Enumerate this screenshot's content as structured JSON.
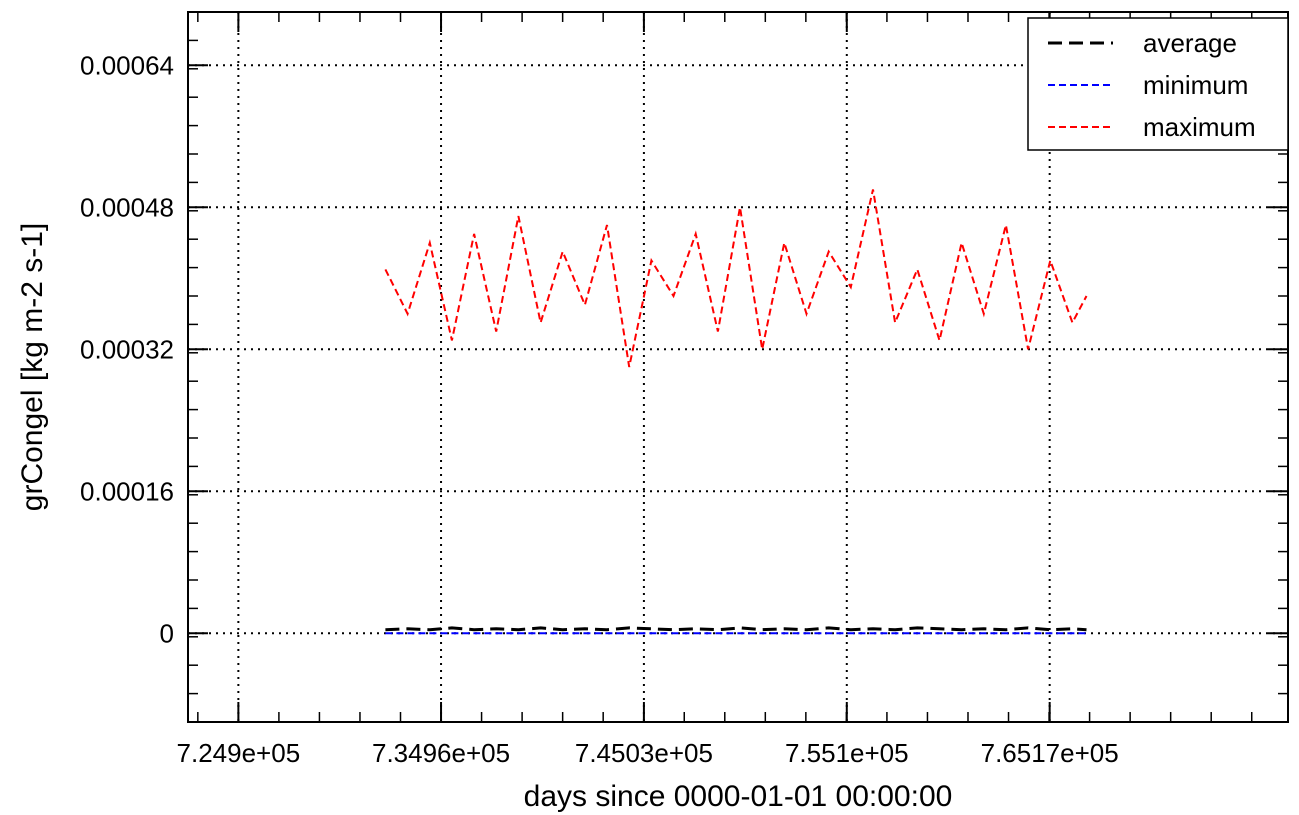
{
  "chart_data": {
    "type": "line",
    "xlabel": "days since 0000-01-01 00:00:00",
    "ylabel": "grCongel [kg m-2 s-1]",
    "xlim": [
      722400,
      777000
    ],
    "ylim": [
      -0.0001,
      0.0007
    ],
    "x_ticks": [
      724900,
      734960,
      745030,
      755100,
      765170
    ],
    "x_tick_labels": [
      "7.249e+05",
      "7.3496e+05",
      "7.4503e+05",
      "7.551e+05",
      "7.6517e+05"
    ],
    "y_ticks": [
      0,
      0.00016,
      0.00032,
      0.00048,
      0.00064
    ],
    "y_tick_labels": [
      "0",
      "0.00016",
      "0.00032",
      "0.00048",
      "0.00064"
    ],
    "grid": true,
    "legend_position": "top-right",
    "x": [
      732200,
      733300,
      734400,
      735500,
      736600,
      737700,
      738800,
      739900,
      741000,
      742100,
      743200,
      744300,
      745400,
      746500,
      747600,
      748700,
      749800,
      750900,
      752000,
      753100,
      754200,
      755300,
      756400,
      757500,
      758600,
      759700,
      760800,
      761900,
      763000,
      764100,
      765200,
      766300,
      767000
    ],
    "series": [
      {
        "name": "average",
        "color": "#000000",
        "style": "long-dash",
        "values": [
          4e-06,
          5e-06,
          4e-06,
          6e-06,
          4e-06,
          5e-06,
          4e-06,
          6e-06,
          4e-06,
          5e-06,
          4e-06,
          6e-06,
          5e-06,
          4e-06,
          5e-06,
          4e-06,
          6e-06,
          4e-06,
          5e-06,
          4e-06,
          6e-06,
          4e-06,
          5e-06,
          4e-06,
          6e-06,
          5e-06,
          4e-06,
          5e-06,
          4e-06,
          6e-06,
          4e-06,
          5e-06,
          4e-06
        ]
      },
      {
        "name": "minimum",
        "color": "#0000ff",
        "style": "short-dash",
        "values": [
          0,
          0,
          0,
          0,
          0,
          0,
          0,
          0,
          0,
          0,
          0,
          0,
          0,
          0,
          0,
          0,
          0,
          0,
          0,
          0,
          0,
          0,
          0,
          0,
          0,
          0,
          0,
          0,
          0,
          0,
          0,
          0,
          0
        ]
      },
      {
        "name": "maximum",
        "color": "#ff0000",
        "style": "short-dash",
        "values": [
          0.00041,
          0.00036,
          0.00044,
          0.00033,
          0.00045,
          0.00034,
          0.00047,
          0.00035,
          0.00043,
          0.00037,
          0.00046,
          0.0003,
          0.00042,
          0.00038,
          0.00045,
          0.00034,
          0.00048,
          0.00032,
          0.00044,
          0.00036,
          0.00043,
          0.00039,
          0.0005,
          0.00035,
          0.00041,
          0.00033,
          0.00044,
          0.00036,
          0.00046,
          0.00032,
          0.00042,
          0.00035,
          0.00038
        ]
      }
    ]
  }
}
